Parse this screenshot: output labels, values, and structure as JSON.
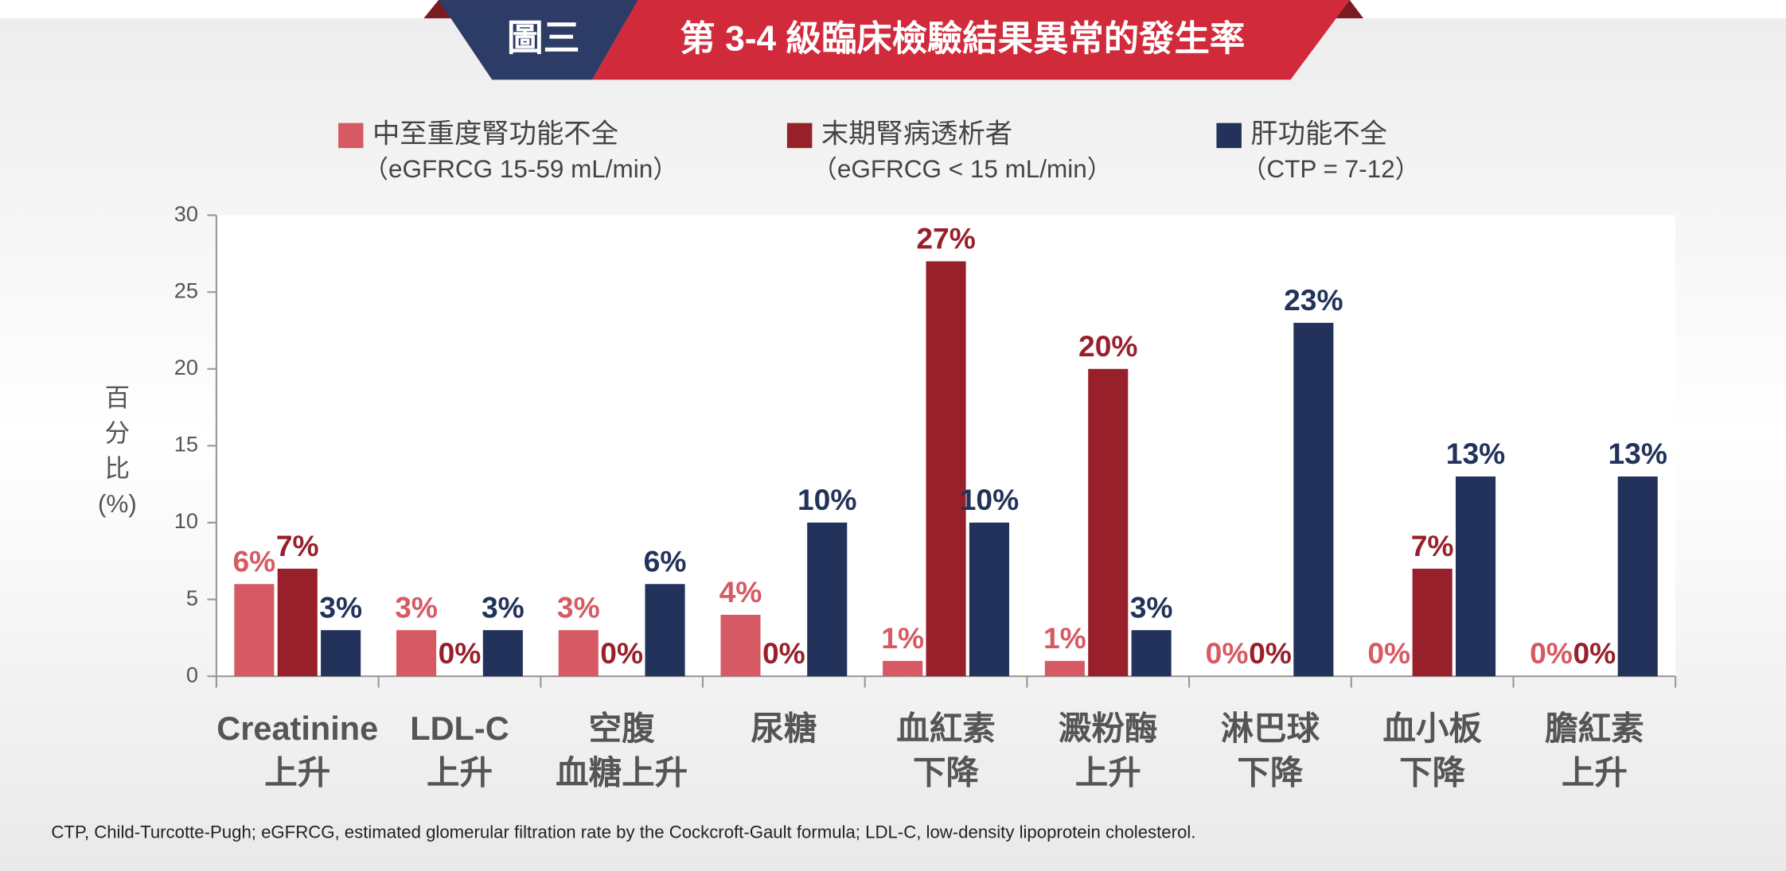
{
  "chart_data": {
    "type": "bar",
    "badge": "圖三",
    "title": "第 3-4 級臨床檢驗結果異常的發生率",
    "y_label": [
      "百",
      "分",
      "比",
      "(%)"
    ],
    "categories": [
      [
        "Creatinine",
        "上升"
      ],
      [
        "LDL-C",
        "上升"
      ],
      [
        "空腹",
        "血糖上升"
      ],
      [
        "尿糖"
      ],
      [
        "血紅素",
        "下降"
      ],
      [
        "澱粉酶",
        "上升"
      ],
      [
        "淋巴球",
        "下降"
      ],
      [
        "血小板",
        "下降"
      ],
      [
        "膽紅素",
        "上升"
      ]
    ],
    "series": [
      {
        "name": "中至重度腎功能不全",
        "subname": "（eGFRCG 15-59 mL/min）",
        "color": "#d65a63",
        "values": [
          6,
          3,
          3,
          4,
          1,
          1,
          0,
          0,
          0
        ],
        "value_labels": [
          "6%",
          "3%",
          "3%",
          "4%",
          "1%",
          "1%",
          "0%",
          "0%",
          "0%"
        ]
      },
      {
        "name": "末期腎病透析者",
        "subname": "（eGFRCG < 15 mL/min）",
        "color": "#98202b",
        "values": [
          7,
          0,
          0,
          0,
          27,
          20,
          0,
          7,
          0
        ],
        "value_labels": [
          "7%",
          "0%",
          "0%",
          "0%",
          "27%",
          "20%",
          "0%",
          "7%",
          "0%"
        ]
      },
      {
        "name": "肝功能不全",
        "subname": "（CTP = 7-12）",
        "color": "#22325a",
        "values": [
          3,
          3,
          6,
          10,
          10,
          3,
          23,
          13,
          13
        ],
        "value_labels": [
          "3%",
          "3%",
          "6%",
          "10%",
          "10%",
          "3%",
          "23%",
          "13%",
          "13%"
        ]
      }
    ],
    "ylim": [
      0,
      30
    ],
    "yticks": [
      0,
      5,
      10,
      15,
      20,
      25,
      30
    ],
    "footnote": "CTP, Child-Turcotte-Pugh; eGFRCG, estimated glomerular filtration rate by the Cockcroft-Gault formula; LDL-C, low-density lipoprotein cholesterol."
  }
}
